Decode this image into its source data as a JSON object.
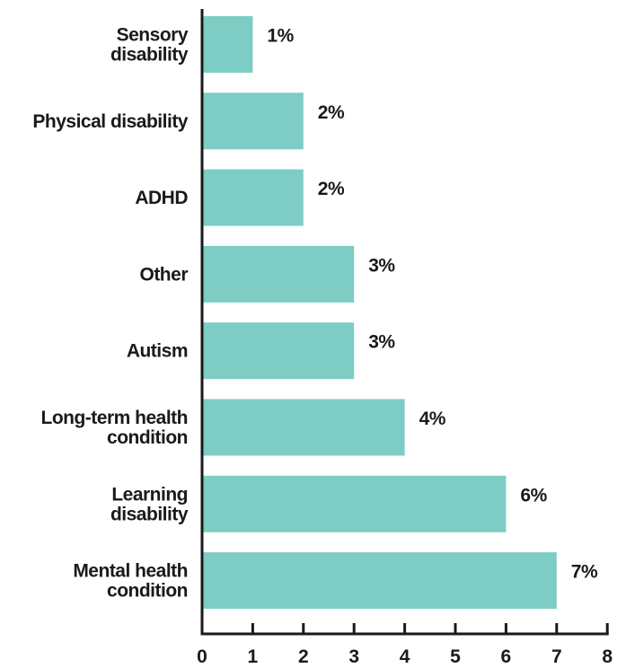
{
  "chart_data": {
    "type": "bar",
    "orientation": "horizontal",
    "title": "",
    "xlabel": "",
    "ylabel": "",
    "categories": [
      [
        "Sensory",
        "disability"
      ],
      [
        "Physical disability"
      ],
      [
        "ADHD"
      ],
      [
        "Other"
      ],
      [
        "Autism"
      ],
      [
        "Long-term health",
        "condition"
      ],
      [
        "Learning",
        "disability"
      ],
      [
        "Mental health",
        "condition"
      ]
    ],
    "values": [
      1,
      2,
      2,
      3,
      3,
      4,
      6,
      7
    ],
    "value_labels": [
      "1%",
      "2%",
      "2%",
      "3%",
      "3%",
      "4%",
      "6%",
      "7%"
    ],
    "xlim": [
      0,
      8
    ],
    "x_ticks": [
      0,
      1,
      2,
      3,
      4,
      5,
      6,
      7,
      8
    ],
    "x_tick_labels": [
      "0",
      "1",
      "2",
      "3",
      "4",
      "5",
      "6",
      "7",
      "8"
    ],
    "grid": false,
    "legend": "none",
    "colors": {
      "bar": "#7ecdc4",
      "text": "#1a1a1a",
      "axis": "#1a1a1a"
    }
  }
}
